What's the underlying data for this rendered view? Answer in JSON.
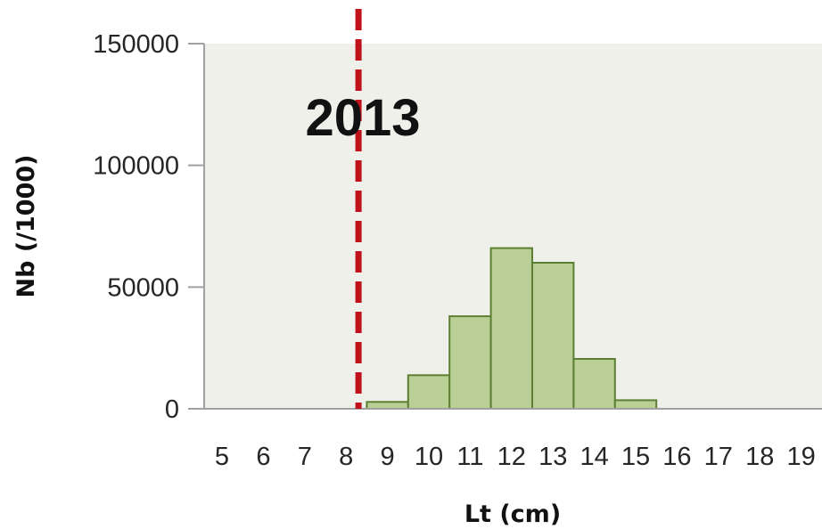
{
  "chart_data": {
    "type": "bar",
    "title": "",
    "annotation": "2013",
    "xlabel": "Lt (cm)",
    "ylabel": "Nb (/1000)",
    "categories": [
      "5",
      "6",
      "7",
      "8",
      "9",
      "10",
      "11",
      "12",
      "13",
      "14",
      "15",
      "16",
      "17",
      "18",
      "19"
    ],
    "values": [
      0,
      0,
      0,
      0,
      2800,
      13800,
      38000,
      66000,
      60000,
      20500,
      3500,
      0,
      0,
      0,
      0
    ],
    "ylim": [
      0,
      150000
    ],
    "yticks": [
      "0",
      "50000",
      "100000",
      "150000"
    ],
    "reference_line": {
      "x": 8.3,
      "style": "dashed",
      "color": "#c0121b"
    },
    "grid": false,
    "legend": "none",
    "colors": {
      "bar_fill": "#b9cf96",
      "bar_stroke": "#5d7f33",
      "plot_background": "#eef0e9",
      "axis": "#a0a0a0"
    }
  }
}
